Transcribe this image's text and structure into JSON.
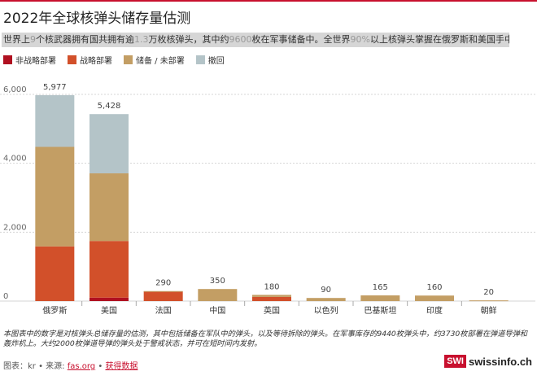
{
  "header": {
    "title": "2022年全球核弹头储存量估测",
    "subtitle_parts": [
      {
        "text": "世界上",
        "hl": false
      },
      {
        "text": "9",
        "hl": true
      },
      {
        "text": "个核武器拥有国共拥有逾",
        "hl": false
      },
      {
        "text": "1.3",
        "hl": true
      },
      {
        "text": "万枚核弹头，其中约",
        "hl": false
      },
      {
        "text": "9600",
        "hl": true
      },
      {
        "text": "枚在军事储备中。全世界",
        "hl": false
      },
      {
        "text": "90%",
        "hl": true
      },
      {
        "text": "以上核弹头掌握在俄罗斯和美国手中。",
        "hl": false
      }
    ]
  },
  "colors": {
    "non_deployed_strategic": "#b01020",
    "deployed_strategic": "#d2502a",
    "stored": "#c39e64",
    "retired": "#b4c4c8",
    "accent": "#c8102e"
  },
  "chart_data": {
    "type": "bar",
    "stacked": true,
    "categories": [
      "俄罗斯",
      "美国",
      "法国",
      "中国",
      "英国",
      "以色列",
      "巴基斯坦",
      "印度",
      "朝鲜"
    ],
    "series": [
      {
        "name": "非战略部署",
        "color": "#b01020",
        "values": [
          0,
          100,
          0,
          0,
          0,
          0,
          0,
          0,
          0
        ]
      },
      {
        "name": "战略部署",
        "color": "#d2502a",
        "values": [
          1588,
          1644,
          280,
          0,
          120,
          0,
          0,
          0,
          0
        ]
      },
      {
        "name": "储备 / 未部署",
        "color": "#c39e64",
        "values": [
          2889,
          1964,
          10,
          350,
          60,
          90,
          165,
          160,
          20
        ]
      },
      {
        "name": "撤回",
        "color": "#b4c4c8",
        "values": [
          1500,
          1720,
          0,
          0,
          0,
          0,
          0,
          0,
          0
        ]
      }
    ],
    "totals": [
      "5,977",
      "5,428",
      "290",
      "350",
      "180",
      "90",
      "165",
      "160",
      "20"
    ],
    "ylim": [
      0,
      6000
    ],
    "yticks": [
      0,
      2000,
      4000,
      6000
    ],
    "ytick_labels": [
      "0",
      "2,000",
      "4,000",
      "6,000"
    ],
    "xlabel": "",
    "ylabel": "",
    "grid": true
  },
  "note": "本图表中的数字是对核弹头总储存量的估测，其中包括储备在军队中的弹头，以及等待拆除的弹头。在军事库存的9440枚弹头中，约3730枚部署在弹道导弹和轰炸机上。大约2000枚弹道导弹的弹头处于警戒状态，并可在短时间内发射。",
  "footer": {
    "prefix": "图表：kr • 来源: ",
    "source_link": "fas.org",
    "separator": " • ",
    "data_link": "获得数据"
  },
  "logo": {
    "box_text": "SWI",
    "text": "swissinfo.ch"
  }
}
